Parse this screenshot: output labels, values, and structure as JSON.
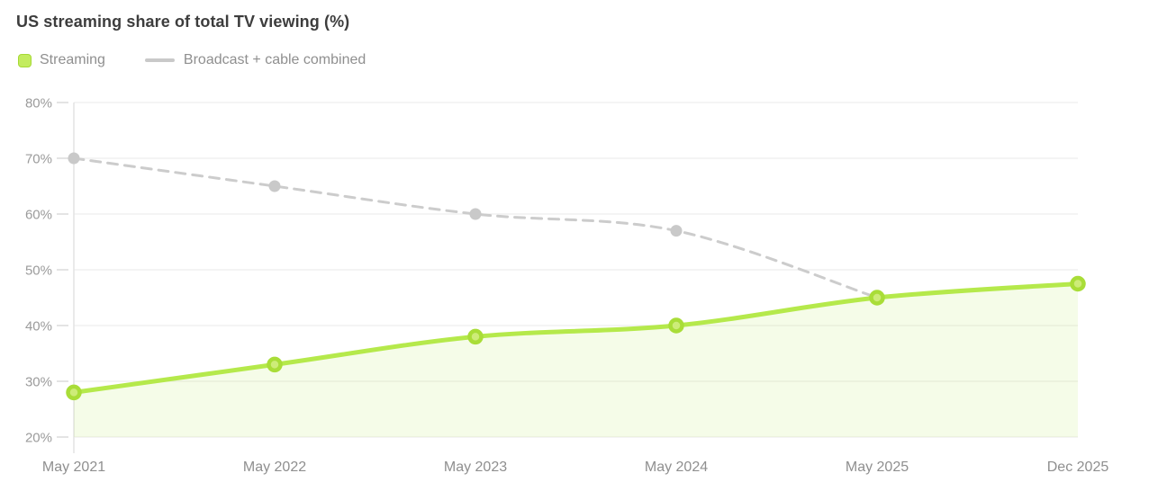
{
  "title": "US streaming share of total TV viewing (%)",
  "legend": {
    "items": [
      {
        "label": "Streaming",
        "swatch": "square"
      },
      {
        "label": "Broadcast + cable combined",
        "swatch": "line"
      }
    ]
  },
  "chart_data": {
    "type": "line",
    "title": "US streaming share of total TV viewing (%)",
    "categories": [
      "May 2021",
      "May 2022",
      "May 2023",
      "May 2024",
      "May 2025",
      "Dec 2025"
    ],
    "series": [
      {
        "name": "Streaming",
        "values": [
          28,
          33,
          38,
          40,
          45,
          47.5
        ],
        "style": "solid",
        "area": true,
        "color": "#b5e94b",
        "point_fill": "#cdec78",
        "point_ring": "#a9dd38",
        "area_color": "rgba(181,233,75,0.13)"
      },
      {
        "name": "Broadcast + cable combined",
        "values": [
          70,
          65,
          60,
          57,
          45,
          null
        ],
        "style": "dashed",
        "dash": "11 8",
        "area": false,
        "color": "#cccccc",
        "point_fill": "#c9c9c9"
      }
    ],
    "xlabel": "",
    "ylabel": "",
    "ylim": [
      20,
      80
    ],
    "yticks": [
      20,
      30,
      40,
      50,
      60,
      70,
      80
    ],
    "ytick_suffix": "%",
    "grid": "horizontal",
    "legend_position": "top-left"
  },
  "colors": {
    "grid": "#eeeeee",
    "axis_line": "#e3e3e3",
    "tick": "#dadada",
    "y_label": "#9b9b9b",
    "x_label": "#8f8f8f",
    "title": "#3d3d3d",
    "legend_text": "#8f8f8f",
    "legend_swatch_fill": "#c3ec5f",
    "legend_swatch_border": "#a6d934",
    "streaming_line": "#b5e94b",
    "broadcast_line": "#cccccc"
  }
}
